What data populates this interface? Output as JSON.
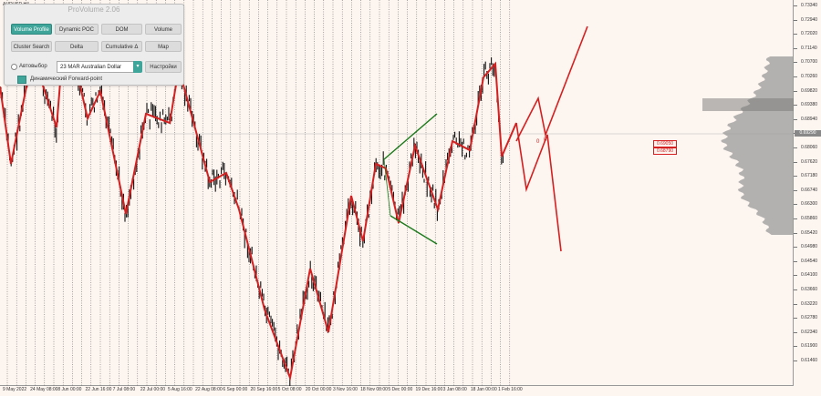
{
  "symbol": "AUDUSD,H4",
  "panel": {
    "title": "ProVolume 2.06",
    "buttons": [
      {
        "label": "Volume Profile",
        "active": true
      },
      {
        "label": "Dynamic POC",
        "active": false
      },
      {
        "label": "DOM",
        "active": false
      },
      {
        "label": "Volume",
        "active": false
      },
      {
        "label": "Cluster Search",
        "active": false
      },
      {
        "label": "Delta",
        "active": false
      },
      {
        "label": "Cumulative Δ",
        "active": false
      },
      {
        "label": "Map",
        "active": false
      }
    ],
    "auto_label": "Автовыбор",
    "instrument": "23 MAR Australian Dollar",
    "settings_label": "Настройки",
    "forward_label": "Динамический Forward-point"
  },
  "price_axis": [
    "0.73340",
    "0.72940",
    "0.72020",
    "0.71140",
    "0.70700",
    "0.70260",
    "0.69820",
    "0.69380",
    "0.68940",
    "0.68500",
    "0.68060",
    "0.67620",
    "0.67180",
    "0.66740",
    "0.66300",
    "0.65860",
    "0.65420",
    "0.64980",
    "0.64540",
    "0.64100",
    "0.63660",
    "0.63220",
    "0.62780",
    "0.62340",
    "0.61900",
    "0.61460"
  ],
  "current_price": "0.69290",
  "red_tags": [
    "0.69050",
    "0.68790"
  ],
  "time_axis": [
    "9 May 2022",
    "24 May 08:00",
    "8 Jun 00:00",
    "22 Jun 16:00",
    "7 Jul 08:00",
    "22 Jul 00:00",
    "5 Aug 16:00",
    "22 Aug 08:00",
    "6 Sep 00:00",
    "20 Sep 16:00",
    "5 Oct 08:00",
    "20 Oct 00:00",
    "3 Nov 16:00",
    "18 Nov 08:00",
    "5 Dec 00:00",
    "19 Dec 16:00",
    "3 Jan 08:00",
    "18 Jan 00:00",
    "1 Feb 16:00"
  ],
  "projection_labels": [
    "0",
    "0"
  ],
  "colors": {
    "background": "#fdf5f0",
    "zigzag": "#d42020",
    "triangle": "#1a7a1a",
    "accent": "#3fa59a",
    "profile": "#9a9a9a"
  }
}
